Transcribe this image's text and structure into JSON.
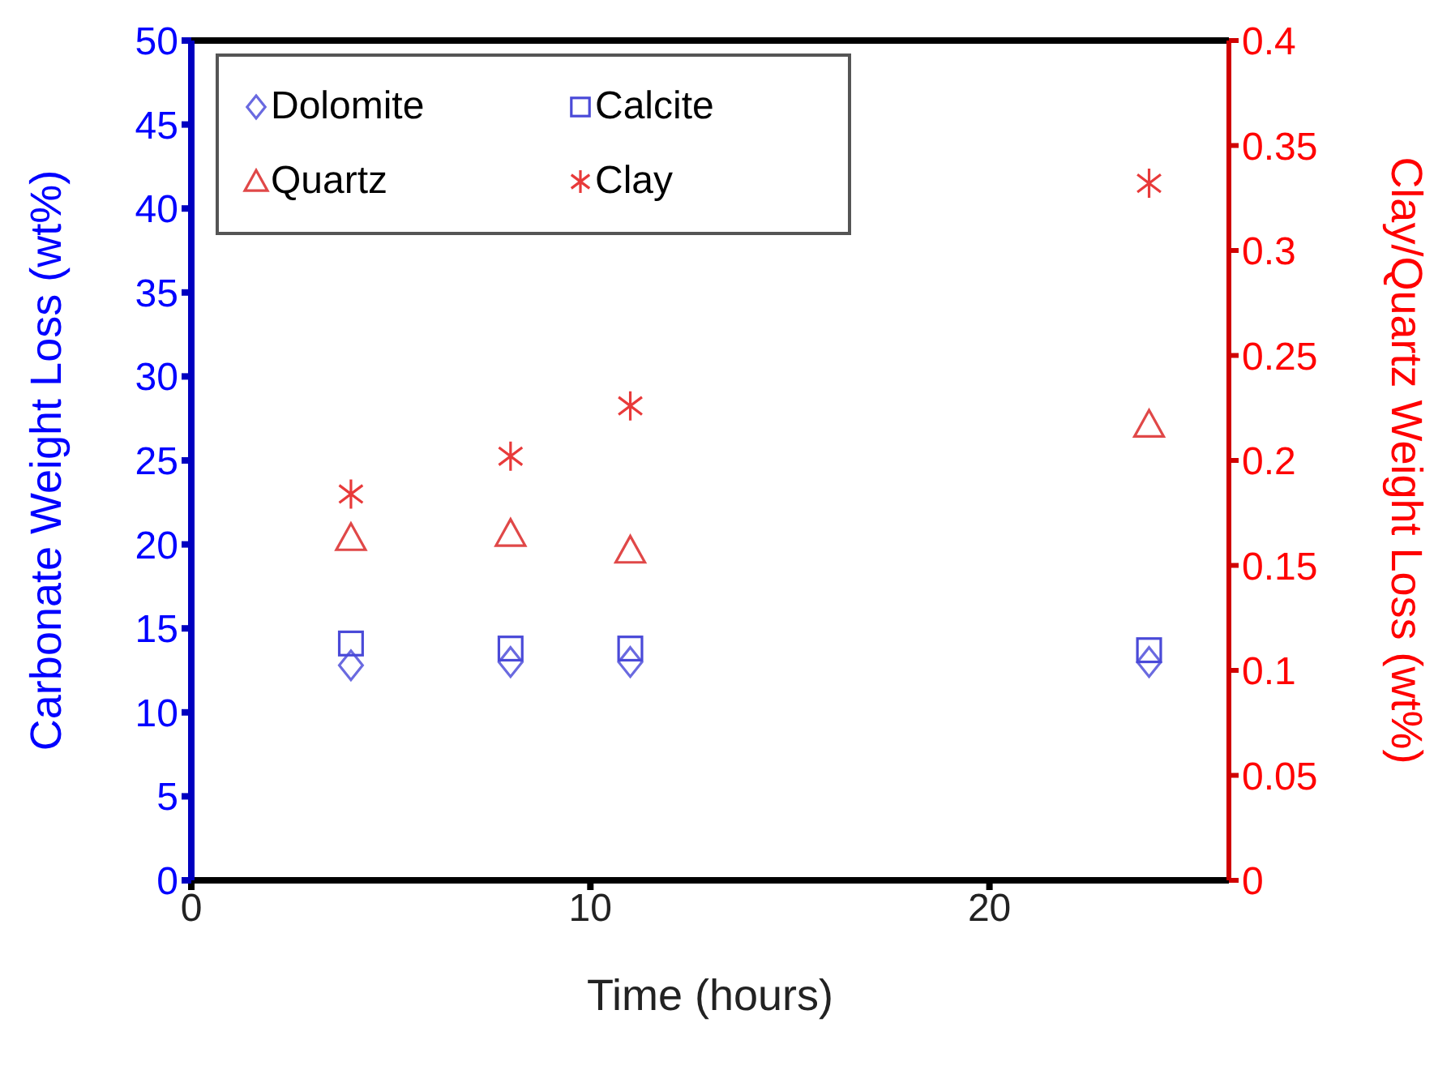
{
  "chart_data": {
    "type": "scatter",
    "xlabel": "Time (hours)",
    "ylabel": "Carbonate Weight Loss (wt%)",
    "y2label": "Clay/Quartz Weight Loss (wt%)",
    "x": [
      4,
      8,
      11,
      24
    ],
    "xlim": [
      0,
      26
    ],
    "xticks": [
      0,
      10,
      20
    ],
    "ylim": [
      0,
      50
    ],
    "yticks": [
      0,
      5,
      10,
      15,
      20,
      25,
      30,
      35,
      40,
      45,
      50
    ],
    "y2lim": [
      0,
      0.4
    ],
    "y2ticks": [
      0,
      0.05,
      0.1,
      0.15,
      0.2,
      0.25,
      0.3,
      0.35,
      0.4
    ],
    "grid": false,
    "legend": "top left",
    "series": [
      {
        "name": "Dolomite",
        "color": "#6a6ae0",
        "marker": "diamond",
        "values": [
          12.8,
          13.0,
          13.0,
          13.0
        ]
      },
      {
        "name": "Calcite",
        "color": "#4a4ad8",
        "marker": "square",
        "values": [
          14.1,
          13.8,
          13.8,
          13.7
        ]
      },
      {
        "name": "Quartz",
        "color": "#e04848",
        "marker": "triangle",
        "axis": "y2",
        "values": [
          0.163,
          0.165,
          0.157,
          0.217
        ]
      },
      {
        "name": "Clay",
        "color": "#e83a3a",
        "marker": "cross",
        "axis": "y2",
        "values": [
          0.184,
          0.202,
          0.226,
          0.332
        ]
      }
    ]
  }
}
